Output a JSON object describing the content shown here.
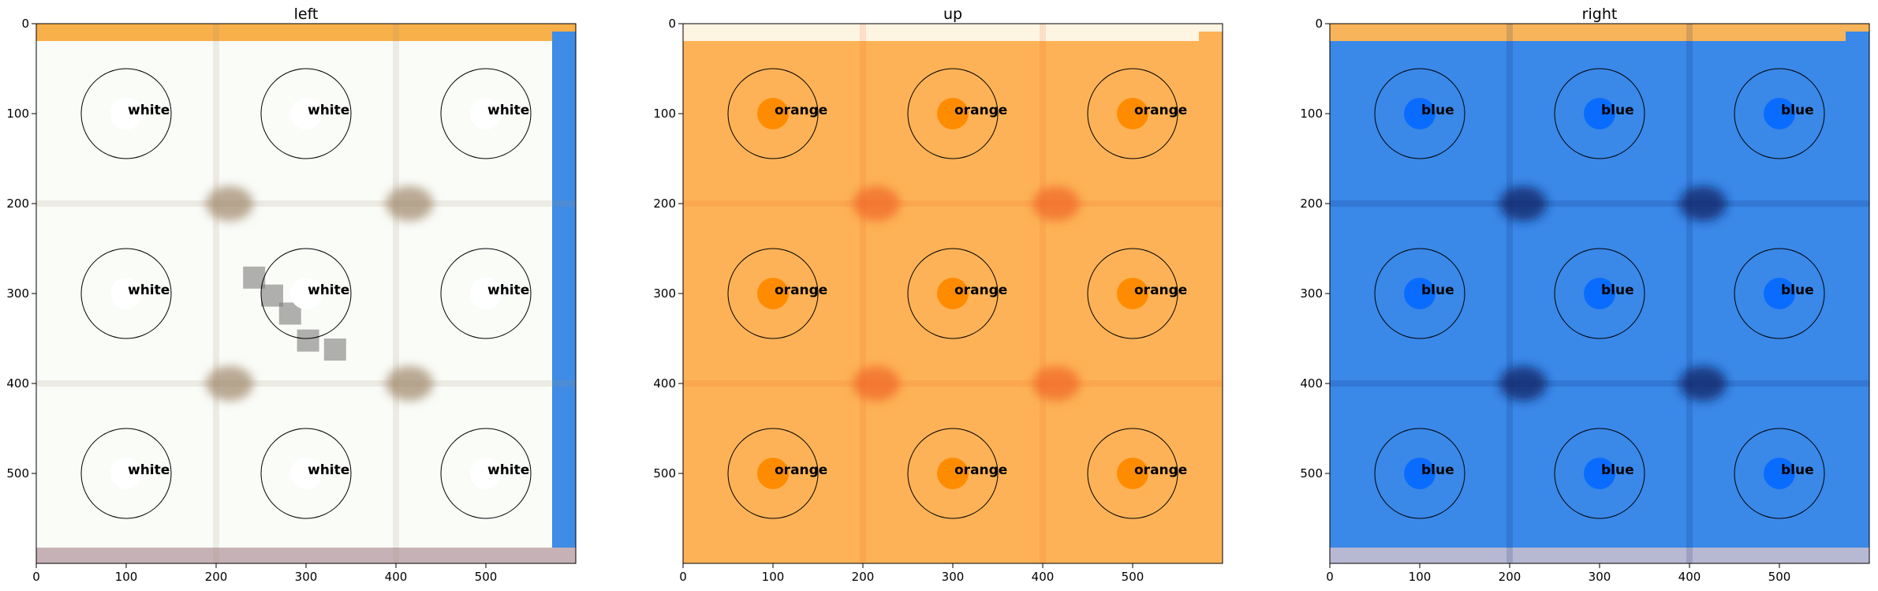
{
  "chart_data": [
    {
      "type": "heatmap",
      "title": "left",
      "xlabel": "",
      "ylabel": "",
      "xlim": [
        0,
        600
      ],
      "ylim": [
        600,
        0
      ],
      "x_ticks": [
        0,
        100,
        200,
        300,
        400,
        500
      ],
      "y_ticks": [
        0,
        100,
        200,
        300,
        400,
        500
      ],
      "grid": false,
      "image_colors": {
        "background": "#fafcf8",
        "top_band": "#f7b04a",
        "right_band": "#3f8ce6",
        "bottom_band": "#c6b2b6",
        "shadow": "#a38c70",
        "gray_patch": "#7d7d7d"
      },
      "markers": [
        {
          "x": 100,
          "y": 100,
          "radius": 50,
          "label": "white",
          "color": "#ffffff"
        },
        {
          "x": 300,
          "y": 100,
          "radius": 50,
          "label": "white",
          "color": "#ffffff"
        },
        {
          "x": 500,
          "y": 100,
          "radius": 50,
          "label": "white",
          "color": "#ffffff"
        },
        {
          "x": 100,
          "y": 300,
          "radius": 50,
          "label": "white",
          "color": "#ffffff"
        },
        {
          "x": 300,
          "y": 300,
          "radius": 50,
          "label": "white",
          "color": "#ffffff"
        },
        {
          "x": 500,
          "y": 300,
          "radius": 50,
          "label": "white",
          "color": "#ffffff"
        },
        {
          "x": 100,
          "y": 500,
          "radius": 50,
          "label": "white",
          "color": "#ffffff"
        },
        {
          "x": 300,
          "y": 500,
          "radius": 50,
          "label": "white",
          "color": "#ffffff"
        },
        {
          "x": 500,
          "y": 500,
          "radius": 50,
          "label": "white",
          "color": "#ffffff"
        }
      ]
    },
    {
      "type": "heatmap",
      "title": "up",
      "xlabel": "",
      "ylabel": "",
      "xlim": [
        0,
        600
      ],
      "ylim": [
        600,
        0
      ],
      "x_ticks": [
        0,
        100,
        200,
        300,
        400,
        500
      ],
      "y_ticks": [
        0,
        100,
        200,
        300,
        400,
        500
      ],
      "grid": false,
      "image_colors": {
        "background": "#fdb257",
        "top_band": "#fef4e2",
        "right_band": "#fdb257",
        "bottom_band": "#fdb257",
        "shadow": "#f06a26",
        "gray_patch": ""
      },
      "markers": [
        {
          "x": 100,
          "y": 100,
          "radius": 50,
          "label": "orange",
          "color": "#ff8c00"
        },
        {
          "x": 300,
          "y": 100,
          "radius": 50,
          "label": "orange",
          "color": "#ff8c00"
        },
        {
          "x": 500,
          "y": 100,
          "radius": 50,
          "label": "orange",
          "color": "#ff8c00"
        },
        {
          "x": 100,
          "y": 300,
          "radius": 50,
          "label": "orange",
          "color": "#ff8c00"
        },
        {
          "x": 300,
          "y": 300,
          "radius": 50,
          "label": "orange",
          "color": "#ff8c00"
        },
        {
          "x": 500,
          "y": 300,
          "radius": 50,
          "label": "orange",
          "color": "#ff8c00"
        },
        {
          "x": 100,
          "y": 500,
          "radius": 50,
          "label": "orange",
          "color": "#ff8c00"
        },
        {
          "x": 300,
          "y": 500,
          "radius": 50,
          "label": "orange",
          "color": "#ff8c00"
        },
        {
          "x": 500,
          "y": 500,
          "radius": 50,
          "label": "orange",
          "color": "#ff8c00"
        }
      ]
    },
    {
      "type": "heatmap",
      "title": "right",
      "xlabel": "",
      "ylabel": "",
      "xlim": [
        0,
        600
      ],
      "ylim": [
        600,
        0
      ],
      "x_ticks": [
        0,
        100,
        200,
        300,
        400,
        500
      ],
      "y_ticks": [
        0,
        100,
        200,
        300,
        400,
        500
      ],
      "grid": false,
      "image_colors": {
        "background": "#3a88e8",
        "top_band": "#f8b45a",
        "right_band": "#3a88e8",
        "bottom_band": "#b7b8d2",
        "shadow": "#0a1f63",
        "gray_patch": ""
      },
      "markers": [
        {
          "x": 100,
          "y": 100,
          "radius": 50,
          "label": "blue",
          "color": "#0a6cff"
        },
        {
          "x": 300,
          "y": 100,
          "radius": 50,
          "label": "blue",
          "color": "#0a6cff"
        },
        {
          "x": 500,
          "y": 100,
          "radius": 50,
          "label": "blue",
          "color": "#0a6cff"
        },
        {
          "x": 100,
          "y": 300,
          "radius": 50,
          "label": "blue",
          "color": "#0a6cff"
        },
        {
          "x": 300,
          "y": 300,
          "radius": 50,
          "label": "blue",
          "color": "#0a6cff"
        },
        {
          "x": 500,
          "y": 300,
          "radius": 50,
          "label": "blue",
          "color": "#0a6cff"
        },
        {
          "x": 100,
          "y": 500,
          "radius": 50,
          "label": "blue",
          "color": "#0a6cff"
        },
        {
          "x": 300,
          "y": 500,
          "radius": 50,
          "label": "blue",
          "color": "#0a6cff"
        },
        {
          "x": 500,
          "y": 500,
          "radius": 50,
          "label": "blue",
          "color": "#0a6cff"
        }
      ]
    }
  ]
}
